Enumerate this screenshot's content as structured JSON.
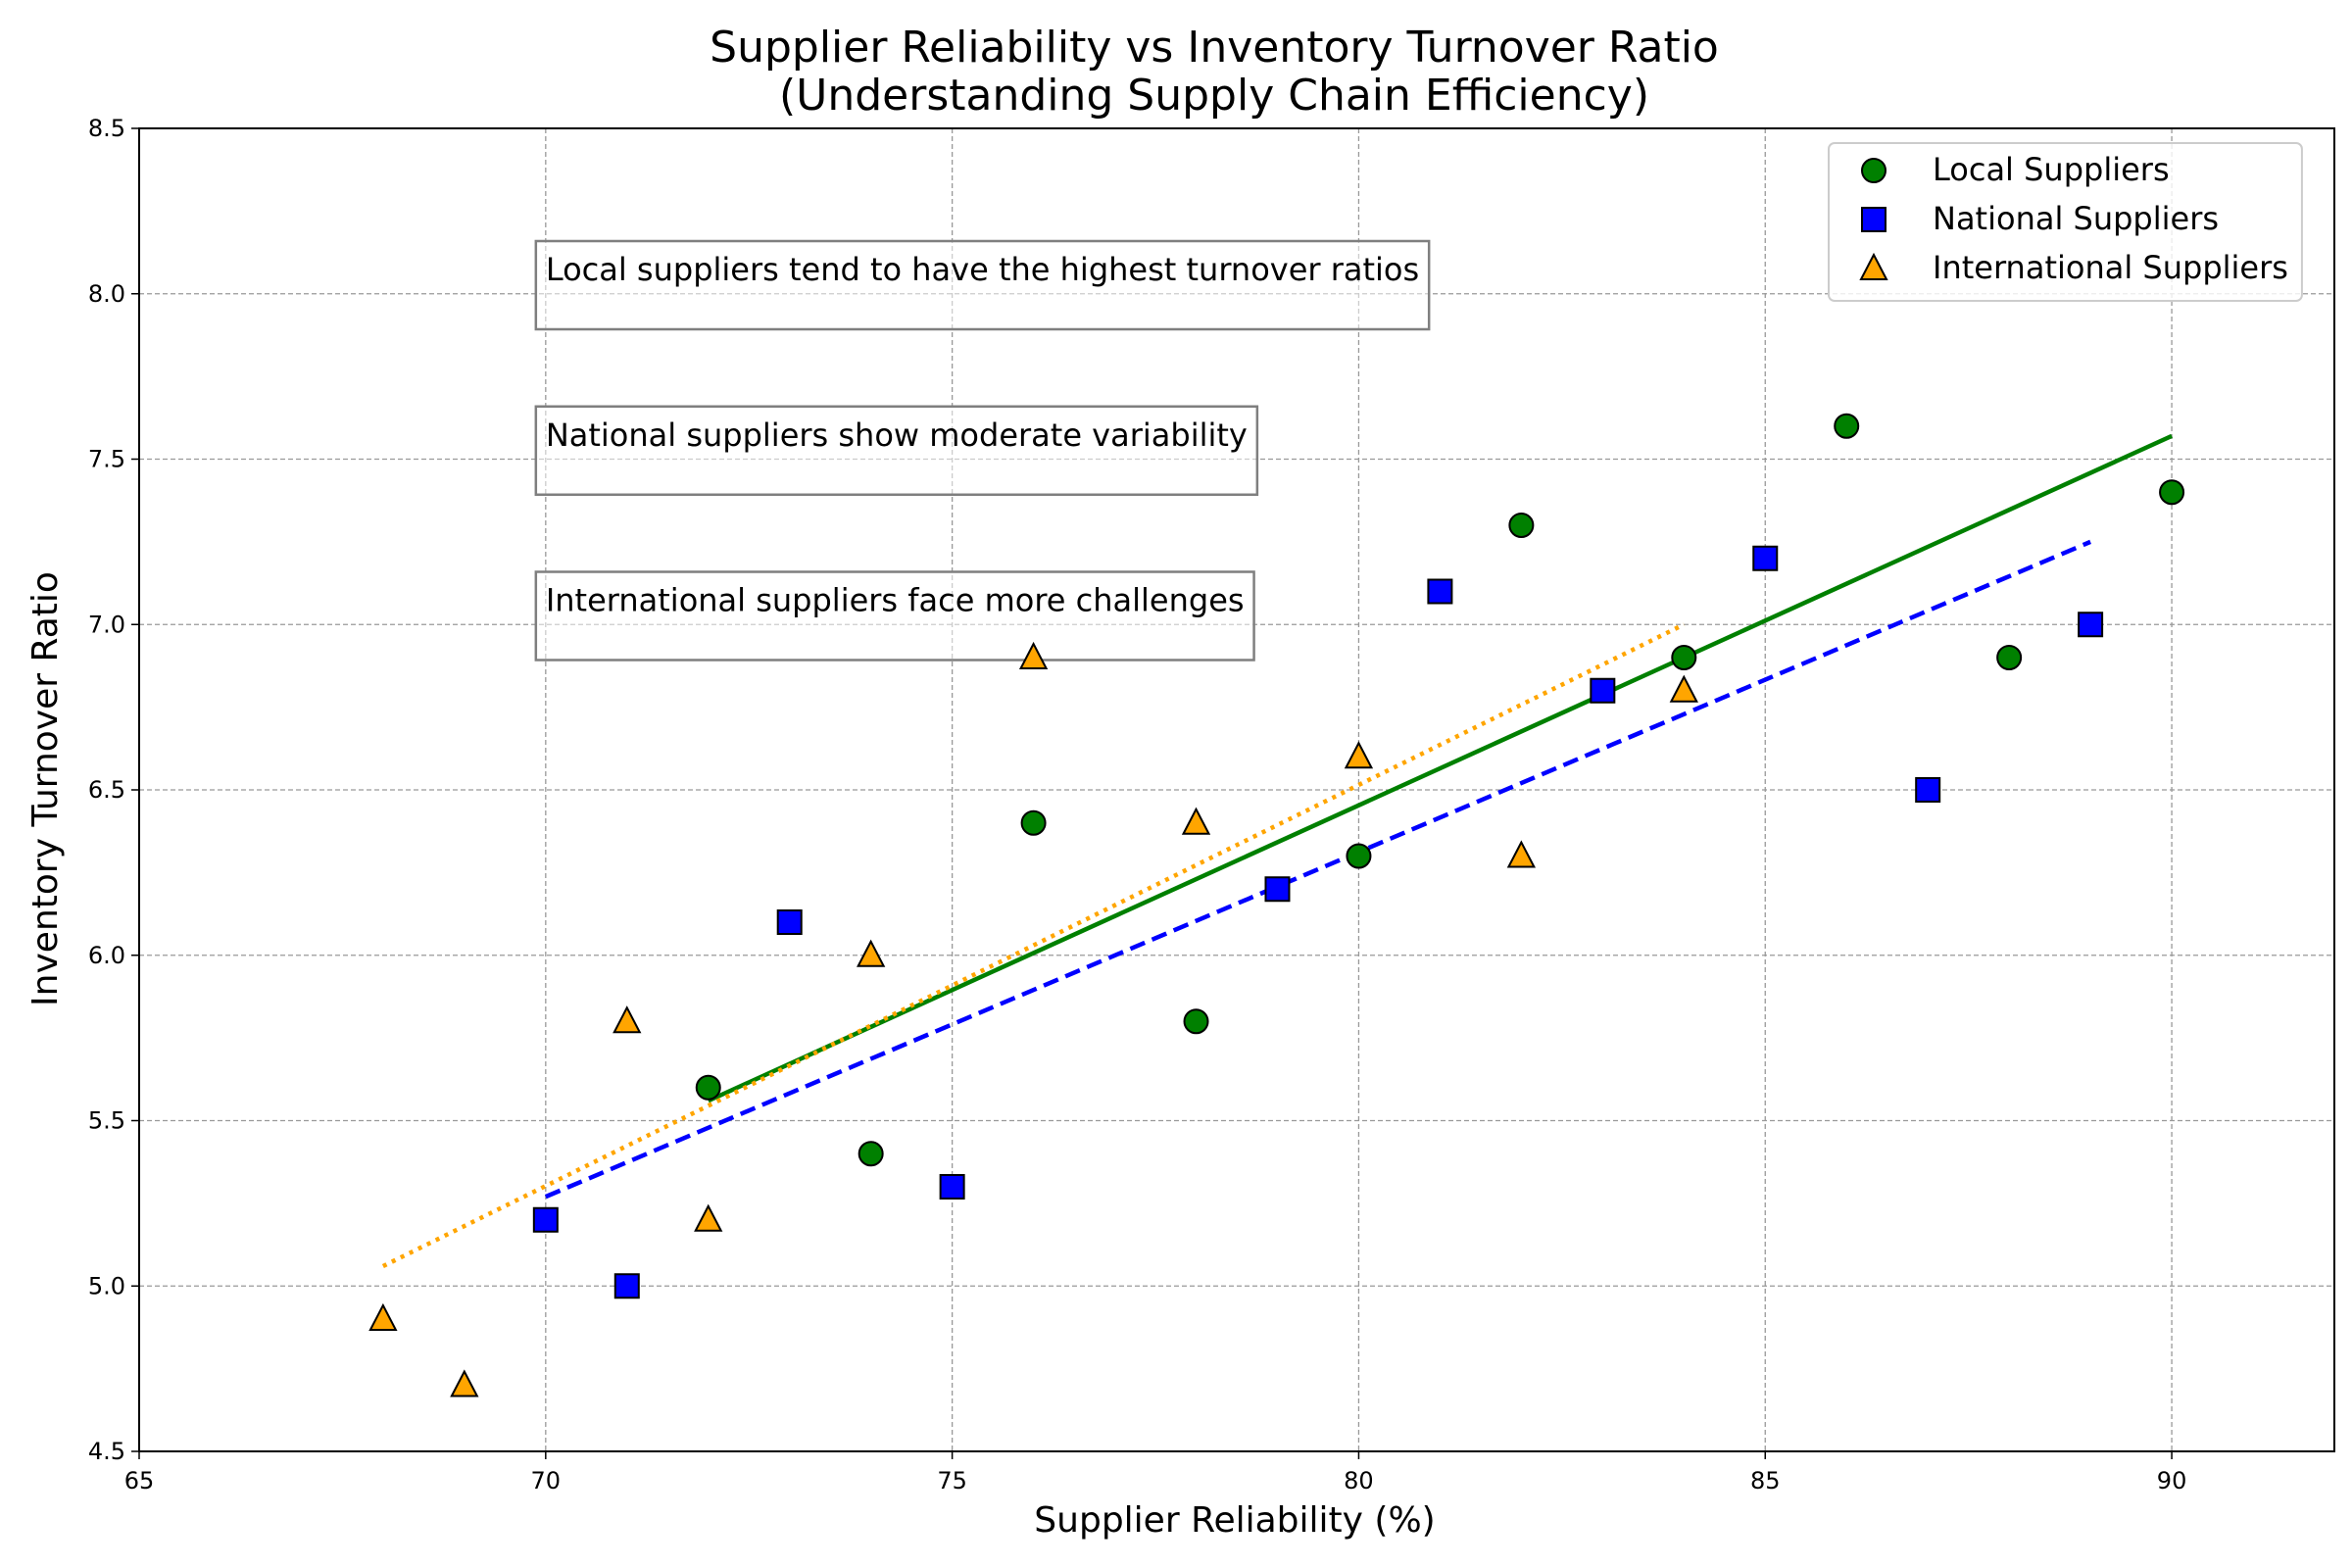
{
  "chart_data": {
    "type": "scatter",
    "title": "Supplier Reliability vs Inventory Turnover Ratio",
    "subtitle": "(Understanding Supply Chain Efficiency)",
    "xlabel": "Supplier Reliability (%)",
    "ylabel": "Inventory Turnover Ratio",
    "xlim": [
      65,
      92
    ],
    "ylim": [
      4.5,
      8.5
    ],
    "xticks": [
      65,
      70,
      75,
      80,
      85,
      90
    ],
    "xtick_labels": [
      "65",
      "70",
      "75",
      "80",
      "85",
      "90"
    ],
    "yticks": [
      4.5,
      5.0,
      5.5,
      6.0,
      6.5,
      7.0,
      7.5,
      8.0,
      8.5
    ],
    "ytick_labels": [
      "4.5",
      "5.0",
      "5.5",
      "6.0",
      "6.5",
      "7.0",
      "7.5",
      "8.0",
      "8.5"
    ],
    "grid": true,
    "legend_position": "top-right",
    "series": [
      {
        "name": "Local Suppliers",
        "marker": "circle",
        "color": "#008000",
        "x": [
          72,
          74,
          76,
          78,
          80,
          82,
          84,
          86,
          88,
          90
        ],
        "y": [
          5.6,
          5.4,
          6.4,
          5.8,
          6.3,
          7.3,
          6.9,
          7.6,
          6.9,
          7.4
        ],
        "trend": {
          "x": [
            72,
            90
          ],
          "y": [
            5.56,
            7.57
          ],
          "style": "solid"
        }
      },
      {
        "name": "National Suppliers",
        "marker": "square",
        "color": "#0000ff",
        "x": [
          70,
          71,
          73,
          75,
          79,
          81,
          83,
          85,
          87,
          89
        ],
        "y": [
          5.2,
          5.0,
          6.1,
          5.3,
          6.2,
          7.1,
          6.8,
          7.2,
          6.5,
          7.0
        ],
        "trend": {
          "x": [
            70,
            89
          ],
          "y": [
            5.27,
            7.25
          ],
          "style": "dashed"
        }
      },
      {
        "name": "International Suppliers",
        "marker": "triangle",
        "color": "#ffa500",
        "x": [
          68,
          69,
          71,
          72,
          74,
          76,
          78,
          80,
          82,
          84
        ],
        "y": [
          4.9,
          4.7,
          5.8,
          5.2,
          6.0,
          6.9,
          6.4,
          6.6,
          6.3,
          6.8
        ],
        "trend": {
          "x": [
            68,
            84
          ],
          "y": [
            5.06,
            7.0
          ],
          "style": "dotted"
        }
      }
    ],
    "annotations": [
      {
        "text": "Local suppliers tend to have the highest turnover ratios",
        "x": 70,
        "y": 8.1
      },
      {
        "text": "National suppliers show moderate variability",
        "x": 70,
        "y": 7.6
      },
      {
        "text": "International suppliers face more challenges",
        "x": 70,
        "y": 7.1
      }
    ]
  }
}
